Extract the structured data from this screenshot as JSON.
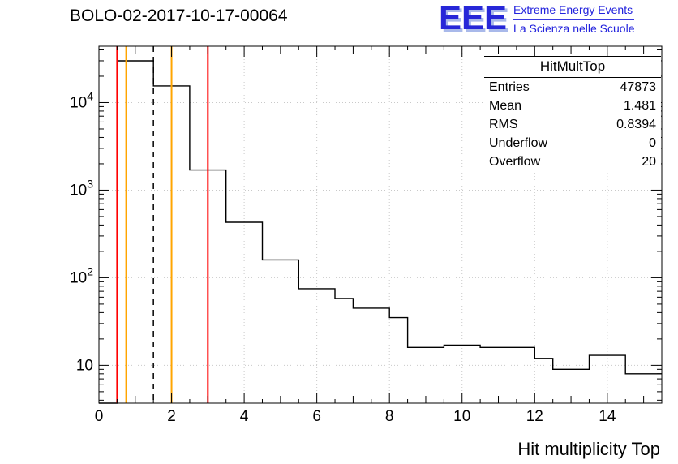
{
  "title": "BOLO-02-2017-10-17-00064",
  "logo": {
    "letters": "EEE",
    "line1": "Extreme Energy Events",
    "line2": "La Scienza nelle Scuole",
    "color": "#2727d8"
  },
  "stats": {
    "title": "HitMultTop",
    "rows": [
      {
        "label": "Entries",
        "value": "47873"
      },
      {
        "label": "Mean",
        "value": "1.481"
      },
      {
        "label": "RMS",
        "value": "0.8394"
      },
      {
        "label": "Underflow",
        "value": "0"
      },
      {
        "label": "Overflow",
        "value": "20"
      }
    ]
  },
  "chart_data": {
    "type": "bar",
    "style": "step-histogram",
    "title": "BOLO-02-2017-10-17-00064",
    "xlabel": "Hit multiplicity Top",
    "ylabel": "",
    "xlim": [
      0,
      15.5
    ],
    "ylim": [
      3.7,
      44000
    ],
    "y_scale": "log",
    "grid": true,
    "x_ticks": [
      0,
      2,
      4,
      6,
      8,
      10,
      12,
      14
    ],
    "y_decades": [
      1,
      2,
      3,
      4
    ],
    "bin_start": 0,
    "bin_width": 0.5,
    "counts": [
      0,
      30000,
      30000,
      15500,
      15500,
      1700,
      1700,
      430,
      430,
      160,
      160,
      75,
      75,
      58,
      45,
      45,
      35,
      16,
      16,
      17,
      17,
      16,
      16,
      16,
      12,
      9,
      9,
      13,
      13,
      8,
      8
    ],
    "line_color": "#000000",
    "vlines": [
      {
        "x": 0.5,
        "color": "#ff0000",
        "dash": false,
        "width": 2
      },
      {
        "x": 0.75,
        "color": "#ffa500",
        "dash": false,
        "width": 2
      },
      {
        "x": 1.5,
        "color": "#000000",
        "dash": true,
        "width": 1.5
      },
      {
        "x": 2.0,
        "color": "#ffa500",
        "dash": false,
        "width": 2
      },
      {
        "x": 3.0,
        "color": "#ff0000",
        "dash": false,
        "width": 2
      }
    ]
  }
}
